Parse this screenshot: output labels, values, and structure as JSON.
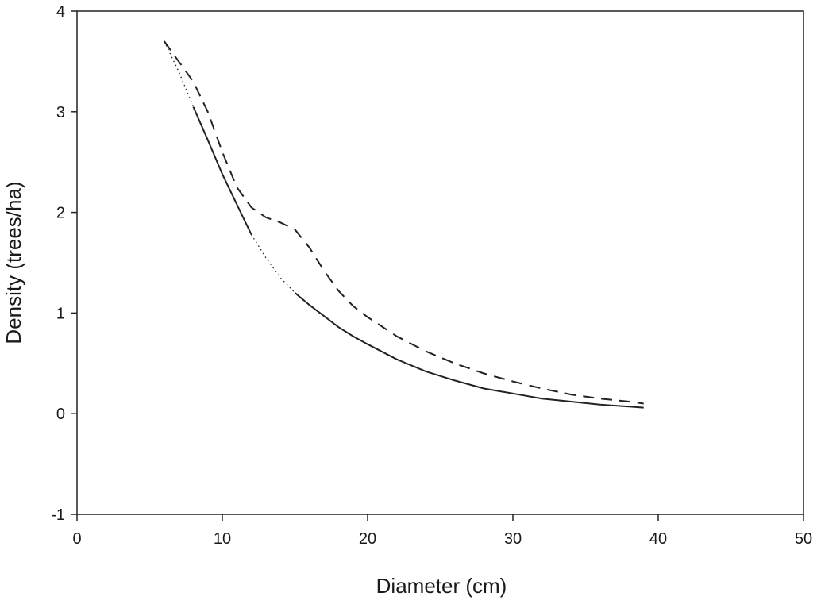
{
  "chart_data": {
    "type": "line",
    "title": "",
    "xlabel": "Diameter (cm)",
    "ylabel": "Density (trees/ha)",
    "xlim": [
      0,
      50
    ],
    "ylim": [
      -1,
      4
    ],
    "xticks": [
      "0",
      "10",
      "20",
      "30",
      "40",
      "50"
    ],
    "yticks": [
      "-1",
      "0",
      "1",
      "2",
      "3",
      "4"
    ],
    "grid": false,
    "legend": "none",
    "series": [
      {
        "style": "solid-with-dotted-gaps",
        "color": "#222222",
        "x": [
          6,
          7,
          8,
          9,
          10,
          11,
          12,
          13,
          14,
          15,
          16,
          17,
          18,
          19,
          20,
          22,
          24,
          26,
          28,
          30,
          32,
          34,
          36,
          38,
          39
        ],
        "y": [
          3.7,
          3.4,
          3.05,
          2.72,
          2.38,
          2.08,
          1.78,
          1.55,
          1.35,
          1.2,
          1.08,
          0.97,
          0.86,
          0.77,
          0.69,
          0.54,
          0.42,
          0.33,
          0.25,
          0.2,
          0.15,
          0.12,
          0.09,
          0.07,
          0.06
        ]
      },
      {
        "style": "dashed",
        "color": "#222222",
        "x": [
          6,
          7,
          8,
          9,
          10,
          11,
          12,
          13,
          14,
          15,
          16,
          17,
          18,
          19,
          20,
          22,
          24,
          26,
          28,
          30,
          32,
          34,
          36,
          38,
          39
        ],
        "y": [
          3.7,
          3.5,
          3.3,
          3.0,
          2.6,
          2.25,
          2.05,
          1.95,
          1.9,
          1.83,
          1.65,
          1.42,
          1.22,
          1.07,
          0.96,
          0.77,
          0.62,
          0.5,
          0.4,
          0.32,
          0.25,
          0.19,
          0.15,
          0.12,
          0.1
        ]
      }
    ]
  }
}
